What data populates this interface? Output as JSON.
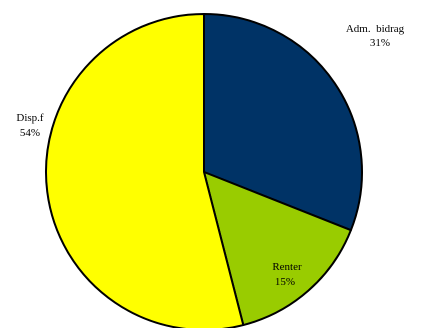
{
  "chart_data": {
    "type": "pie",
    "title": "",
    "slices": [
      {
        "name": "Adm.  bidrag",
        "value": 31,
        "label": "31%",
        "color": "#003366"
      },
      {
        "name": "Renter",
        "value": 15,
        "label": "15%",
        "color": "#99CC00"
      },
      {
        "name": "Disp.f",
        "value": 54,
        "label": "54%",
        "color": "#FFFF00"
      }
    ],
    "start_angle": "12 o'clock",
    "direction": "clockwise",
    "legend": "none",
    "outline_color": "#000000"
  }
}
